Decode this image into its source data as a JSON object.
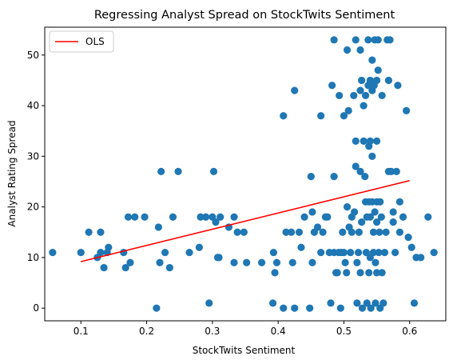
{
  "chart_data": {
    "type": "scatter",
    "title": "Regressing Analyst Spread on StockTwits Sentiment",
    "xlabel": "StockTwits Sentiment",
    "ylabel": "Analyst Rating Spread",
    "xlim": [
      0.045,
      0.655
    ],
    "ylim": [
      -2.5,
      55.5
    ],
    "xticks": [
      0.1,
      0.2,
      0.3,
      0.4,
      0.5,
      0.6
    ],
    "xtick_labels": [
      "0.1",
      "0.2",
      "0.3",
      "0.4",
      "0.5",
      "0.6"
    ],
    "yticks": [
      0,
      10,
      20,
      30,
      40,
      50
    ],
    "ytick_labels": [
      "0",
      "10",
      "20",
      "30",
      "40",
      "50"
    ],
    "grid": false,
    "legend": {
      "placement": "top-left",
      "entries": [
        "OLS"
      ]
    },
    "colors": {
      "points": "#1f77b4",
      "ols": "#ff0000"
    },
    "series": [
      {
        "name": "",
        "type": "scatter",
        "points": [
          [
            0.057,
            11
          ],
          [
            0.1,
            11
          ],
          [
            0.112,
            15
          ],
          [
            0.125,
            10
          ],
          [
            0.13,
            15
          ],
          [
            0.13,
            11
          ],
          [
            0.135,
            8
          ],
          [
            0.14,
            11
          ],
          [
            0.142,
            12
          ],
          [
            0.165,
            11
          ],
          [
            0.168,
            8
          ],
          [
            0.172,
            18
          ],
          [
            0.175,
            9
          ],
          [
            0.182,
            18
          ],
          [
            0.197,
            18
          ],
          [
            0.215,
            0
          ],
          [
            0.218,
            16
          ],
          [
            0.22,
            9
          ],
          [
            0.222,
            27
          ],
          [
            0.228,
            11
          ],
          [
            0.235,
            8
          ],
          [
            0.24,
            18
          ],
          [
            0.248,
            27
          ],
          [
            0.265,
            11
          ],
          [
            0.28,
            12
          ],
          [
            0.282,
            18
          ],
          [
            0.29,
            18
          ],
          [
            0.295,
            1
          ],
          [
            0.3,
            18
          ],
          [
            0.302,
            27
          ],
          [
            0.305,
            17
          ],
          [
            0.308,
            10
          ],
          [
            0.31,
            10
          ],
          [
            0.312,
            18
          ],
          [
            0.325,
            16
          ],
          [
            0.333,
            18
          ],
          [
            0.333,
            9
          ],
          [
            0.338,
            15
          ],
          [
            0.348,
            15
          ],
          [
            0.352,
            9
          ],
          [
            0.375,
            9
          ],
          [
            0.393,
            11
          ],
          [
            0.392,
            1
          ],
          [
            0.395,
            7
          ],
          [
            0.398,
            9
          ],
          [
            0.408,
            0
          ],
          [
            0.408,
            38
          ],
          [
            0.412,
            15
          ],
          [
            0.42,
            15
          ],
          [
            0.422,
            9
          ],
          [
            0.425,
            0
          ],
          [
            0.425,
            43
          ],
          [
            0.432,
            15
          ],
          [
            0.435,
            12
          ],
          [
            0.44,
            18
          ],
          [
            0.448,
            0
          ],
          [
            0.45,
            26
          ],
          [
            0.452,
            9
          ],
          [
            0.452,
            19
          ],
          [
            0.455,
            15
          ],
          [
            0.46,
            16
          ],
          [
            0.465,
            38
          ],
          [
            0.465,
            11
          ],
          [
            0.468,
            15
          ],
          [
            0.472,
            18
          ],
          [
            0.475,
            18
          ],
          [
            0.478,
            11
          ],
          [
            0.48,
            1
          ],
          [
            0.482,
            44
          ],
          [
            0.485,
            53
          ],
          [
            0.485,
            26
          ],
          [
            0.485,
            11
          ],
          [
            0.488,
            7
          ],
          [
            0.49,
            7
          ],
          [
            0.492,
            11
          ],
          [
            0.493,
            42
          ],
          [
            0.495,
            0
          ],
          [
            0.496,
            11
          ],
          [
            0.498,
            15
          ],
          [
            0.5,
            38
          ],
          [
            0.5,
            11
          ],
          [
            0.502,
            9
          ],
          [
            0.504,
            7
          ],
          [
            0.505,
            51
          ],
          [
            0.505,
            20
          ],
          [
            0.507,
            39
          ],
          [
            0.508,
            16
          ],
          [
            0.51,
            11
          ],
          [
            0.512,
            15
          ],
          [
            0.512,
            18
          ],
          [
            0.515,
            42
          ],
          [
            0.516,
            19
          ],
          [
            0.518,
            53
          ],
          [
            0.518,
            33
          ],
          [
            0.518,
            28
          ],
          [
            0.52,
            9
          ],
          [
            0.52,
            1
          ],
          [
            0.522,
            11
          ],
          [
            0.523,
            15
          ],
          [
            0.525,
            51
          ],
          [
            0.525,
            43
          ],
          [
            0.525,
            27
          ],
          [
            0.525,
            7
          ],
          [
            0.527,
            45
          ],
          [
            0.527,
            17
          ],
          [
            0.528,
            0
          ],
          [
            0.53,
            40
          ],
          [
            0.53,
            33
          ],
          [
            0.532,
            26
          ],
          [
            0.533,
            42
          ],
          [
            0.533,
            21
          ],
          [
            0.534,
            11
          ],
          [
            0.535,
            18
          ],
          [
            0.535,
            1
          ],
          [
            0.537,
            53
          ],
          [
            0.537,
            44
          ],
          [
            0.538,
            32
          ],
          [
            0.538,
            21
          ],
          [
            0.538,
            7
          ],
          [
            0.54,
            45
          ],
          [
            0.54,
            33
          ],
          [
            0.54,
            18
          ],
          [
            0.54,
            10
          ],
          [
            0.541,
            0
          ],
          [
            0.543,
            49
          ],
          [
            0.543,
            43
          ],
          [
            0.543,
            30
          ],
          [
            0.543,
            21
          ],
          [
            0.545,
            15
          ],
          [
            0.545,
            11
          ],
          [
            0.546,
            44
          ],
          [
            0.547,
            53
          ],
          [
            0.547,
            19
          ],
          [
            0.548,
            9
          ],
          [
            0.548,
            1
          ],
          [
            0.55,
            45
          ],
          [
            0.55,
            33
          ],
          [
            0.55,
            21
          ],
          [
            0.55,
            17
          ],
          [
            0.55,
            7
          ],
          [
            0.552,
            53
          ],
          [
            0.552,
            47
          ],
          [
            0.553,
            11
          ],
          [
            0.554,
            15
          ],
          [
            0.555,
            21
          ],
          [
            0.555,
            0
          ],
          [
            0.557,
            18
          ],
          [
            0.558,
            42
          ],
          [
            0.558,
            7
          ],
          [
            0.56,
            1
          ],
          [
            0.562,
            11
          ],
          [
            0.564,
            15
          ],
          [
            0.566,
            53
          ],
          [
            0.568,
            27
          ],
          [
            0.568,
            45
          ],
          [
            0.57,
            53
          ],
          [
            0.572,
            27
          ],
          [
            0.575,
            17
          ],
          [
            0.575,
            19
          ],
          [
            0.578,
            11
          ],
          [
            0.58,
            27
          ],
          [
            0.582,
            44
          ],
          [
            0.585,
            21
          ],
          [
            0.585,
            15
          ],
          [
            0.59,
            18
          ],
          [
            0.595,
            39
          ],
          [
            0.598,
            14
          ],
          [
            0.603,
            12
          ],
          [
            0.607,
            1
          ],
          [
            0.61,
            10
          ],
          [
            0.617,
            10
          ],
          [
            0.628,
            18
          ],
          [
            0.637,
            11
          ]
        ]
      },
      {
        "name": "OLS",
        "type": "line",
        "points": [
          [
            0.1,
            9.2
          ],
          [
            0.6,
            25.2
          ]
        ]
      }
    ]
  }
}
